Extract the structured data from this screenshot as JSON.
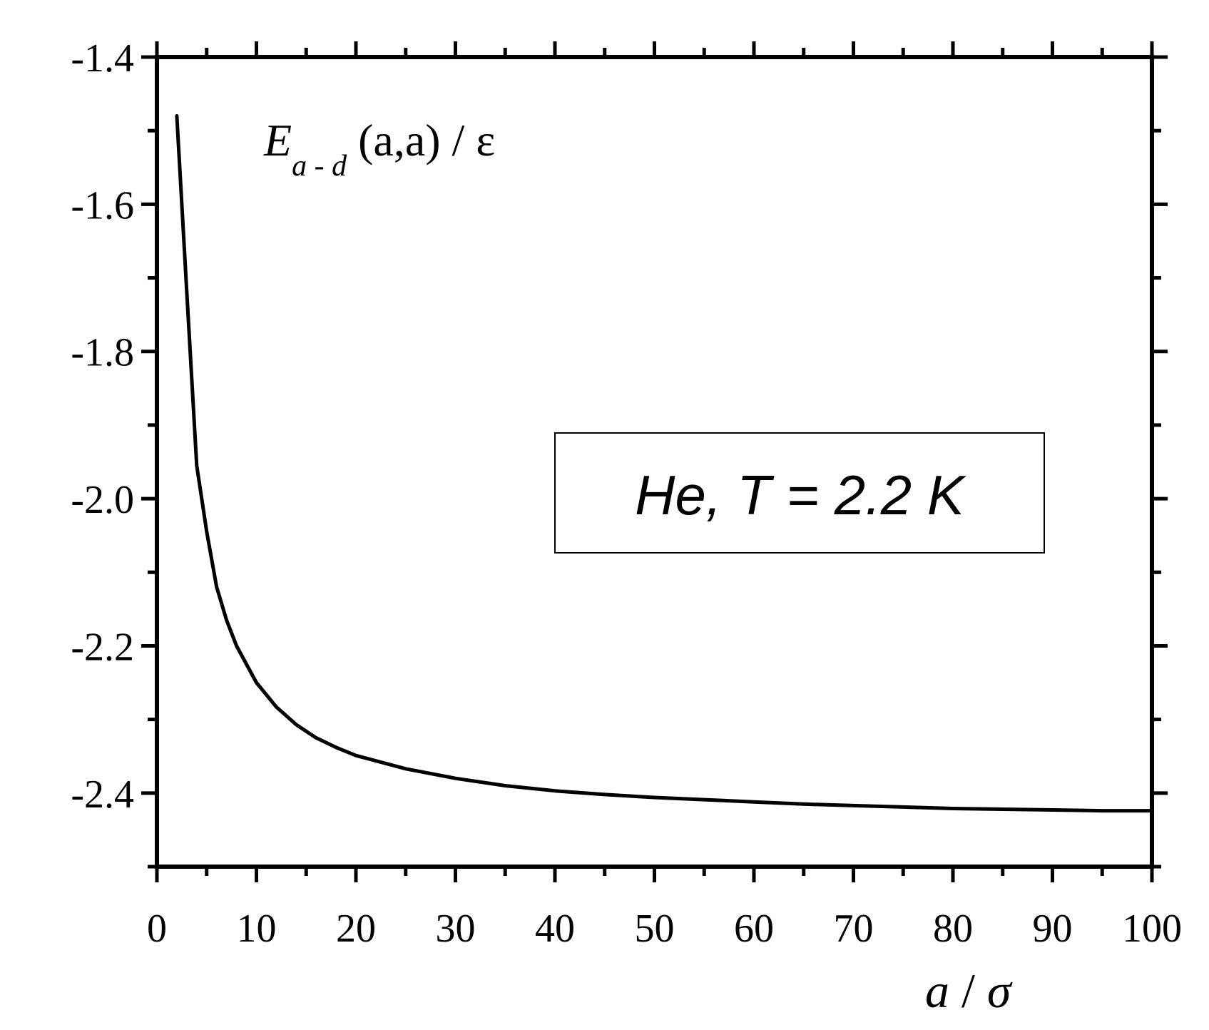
{
  "chart_data": {
    "type": "line",
    "title": "",
    "xlabel": {
      "var": "a",
      "sep": " / ",
      "unit": "σ"
    },
    "ylabel": {
      "var": "E",
      "sub": "a - d",
      "args": " (a,a) / ε"
    },
    "xlim": [
      0,
      100
    ],
    "ylim": [
      -2.5,
      -1.4
    ],
    "xticks": [
      0,
      10,
      20,
      30,
      40,
      50,
      60,
      70,
      80,
      90,
      100
    ],
    "xtick_labels": [
      "0",
      "10",
      "20",
      "30",
      "40",
      "50",
      "60",
      "70",
      "80",
      "90",
      "100"
    ],
    "yticks": [
      -1.4,
      -1.6,
      -1.8,
      -2.0,
      -2.2,
      -2.4
    ],
    "ytick_labels": [
      "-1.4",
      "-1.6",
      "-1.8",
      "-2.0",
      "-2.2",
      "-2.4"
    ],
    "grid": false,
    "annotation": "He, T = 2.2 K",
    "series": [
      {
        "color": "#000000",
        "x": [
          2,
          3,
          4,
          5,
          6,
          7,
          8,
          10,
          12,
          14,
          16,
          18,
          20,
          25,
          30,
          35,
          40,
          45,
          50,
          55,
          60,
          65,
          70,
          75,
          80,
          85,
          90,
          95,
          100
        ],
        "y": [
          -1.48,
          -1.72,
          -1.955,
          -2.045,
          -2.12,
          -2.165,
          -2.2,
          -2.25,
          -2.283,
          -2.307,
          -2.325,
          -2.338,
          -2.349,
          -2.367,
          -2.38,
          -2.39,
          -2.397,
          -2.402,
          -2.406,
          -2.409,
          -2.412,
          -2.415,
          -2.417,
          -2.419,
          -2.421,
          -2.422,
          -2.423,
          -2.424,
          -2.424
        ]
      }
    ]
  }
}
